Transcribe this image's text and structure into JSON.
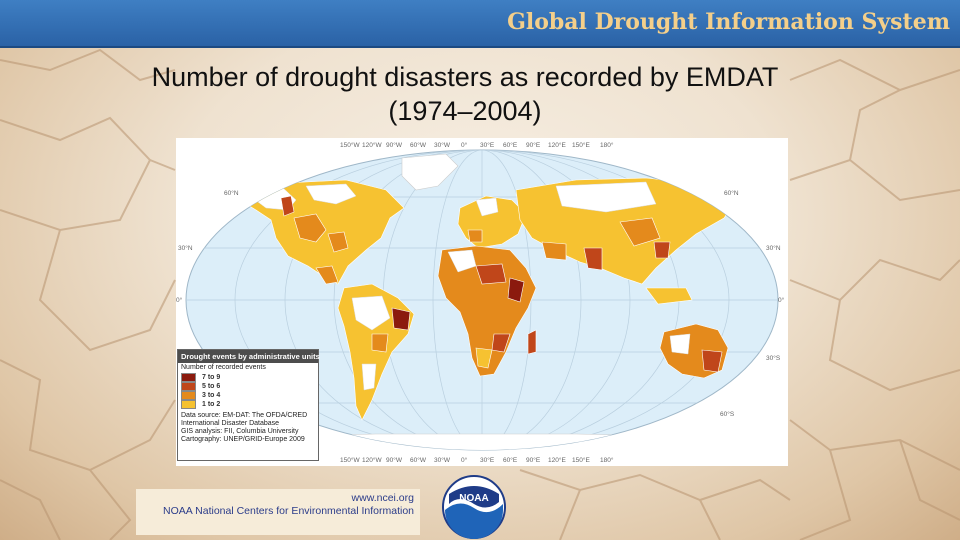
{
  "header": {
    "app_title": "Global Drought Information System"
  },
  "slide": {
    "title": "Number of drought disasters as recorded by EMDAT (1974–2004)"
  },
  "map": {
    "top_longitude_labels": [
      "150°W",
      "120°W",
      "90°W",
      "60°W",
      "30°W",
      "0°",
      "30°E",
      "60°E",
      "90°E",
      "120°E",
      "150°E",
      "180°"
    ],
    "bottom_longitude_labels": [
      "150°W",
      "120°W",
      "90°W",
      "60°W",
      "30°W",
      "0°",
      "30°E",
      "60°E",
      "90°E",
      "120°E",
      "150°E",
      "180°"
    ],
    "left_latitude_labels": [
      "60°N",
      "30°N",
      "0°"
    ],
    "right_latitude_labels": [
      "60°N",
      "30°N",
      "0°",
      "30°S",
      "60°S"
    ],
    "legend": {
      "title": "Drought events by administrative units",
      "subtitle": "Number of recorded events",
      "classes": [
        {
          "label": "7 to 9",
          "color": "#8b1a0e"
        },
        {
          "label": "5 to 6",
          "color": "#c0461a"
        },
        {
          "label": "3 to 4",
          "color": "#e48a1c"
        },
        {
          "label": "1 to 2",
          "color": "#f6c231"
        }
      ],
      "source": [
        "Data source: EM-DAT: The OFDA/CRED",
        "International Disaster Database",
        "GIS analysis: FII, Columbia University",
        "Cartography: UNEP/GRID-Europe 2009"
      ]
    }
  },
  "footer": {
    "url": "www.ncei.org",
    "org": "NOAA National Centers for Environmental Information",
    "logo_text": "NOAA"
  },
  "colors": {
    "header_bg": "#2f6db2",
    "header_text": "#f4cf8a",
    "ocean": "#dceef9",
    "no_data": "#ffffff"
  }
}
